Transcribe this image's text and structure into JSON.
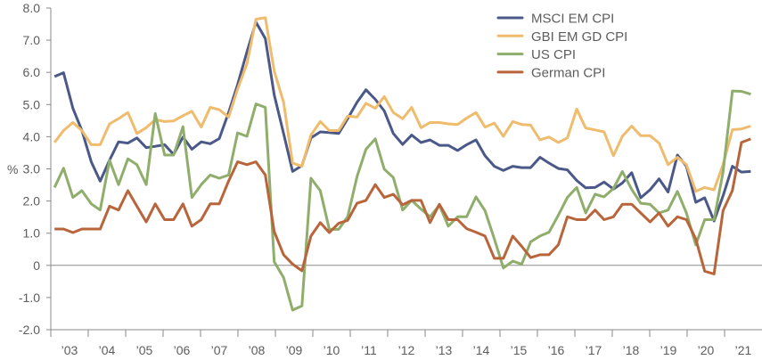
{
  "chart_data": {
    "type": "line",
    "title": "",
    "xlabel": "",
    "ylabel": "%",
    "ylim": [
      -2.0,
      8.0
    ],
    "xlim": [
      2003,
      2022
    ],
    "grid": false,
    "legend_position": "top-right",
    "y_ticks": [
      {
        "value": 8,
        "label": "8.0"
      },
      {
        "value": 7,
        "label": "7.0"
      },
      {
        "value": 6,
        "label": "6.0"
      },
      {
        "value": 5,
        "label": "5.0"
      },
      {
        "value": 4,
        "label": "4.0"
      },
      {
        "value": 3,
        "label": "3.0"
      },
      {
        "value": 2,
        "label": "2.0"
      },
      {
        "value": 1,
        "label": "1.0"
      },
      {
        "value": 0,
        "label": "0"
      },
      {
        "value": -1,
        "label": "-1.0"
      },
      {
        "value": -2,
        "label": "-2.0"
      }
    ],
    "x_tick_labels": [
      "’03",
      "’04",
      "’05",
      "’06",
      "’07",
      "’08",
      "’09",
      "’10",
      "’11",
      "’12",
      "’13",
      "’14",
      "’15",
      "’16",
      "’17",
      "’18",
      "’19",
      "’20",
      "’21"
    ],
    "x": [
      2003.1,
      2003.34,
      2003.59,
      2003.83,
      2004.08,
      2004.32,
      2004.57,
      2004.81,
      2005.06,
      2005.3,
      2005.55,
      2005.79,
      2006.04,
      2006.28,
      2006.53,
      2006.77,
      2007.02,
      2007.26,
      2007.5,
      2007.75,
      2007.99,
      2008.24,
      2008.48,
      2008.73,
      2008.97,
      2009.22,
      2009.46,
      2009.71,
      2009.95,
      2010.2,
      2010.44,
      2010.69,
      2010.93,
      2011.18,
      2011.42,
      2011.67,
      2011.91,
      2012.15,
      2012.4,
      2012.64,
      2012.89,
      2013.13,
      2013.38,
      2013.62,
      2013.87,
      2014.11,
      2014.36,
      2014.6,
      2014.85,
      2015.09,
      2015.34,
      2015.58,
      2015.82,
      2016.07,
      2016.31,
      2016.56,
      2016.8,
      2017.05,
      2017.29,
      2017.54,
      2017.78,
      2018.03,
      2018.27,
      2018.52,
      2018.76,
      2019.01,
      2019.25,
      2019.49,
      2019.74,
      2019.98,
      2020.23,
      2020.47,
      2020.72,
      2020.96,
      2021.21,
      2021.45,
      2021.7
    ],
    "series": [
      {
        "name": "MSCI EM CPI",
        "color": "#4b5988",
        "values": [
          5.87,
          5.99,
          4.88,
          4.19,
          3.22,
          2.62,
          3.27,
          3.84,
          3.8,
          3.96,
          3.66,
          3.7,
          3.75,
          3.45,
          3.99,
          3.61,
          3.84,
          3.78,
          3.94,
          4.75,
          5.62,
          6.64,
          7.56,
          7.05,
          5.3,
          4.1,
          2.92,
          3.1,
          3.96,
          4.15,
          4.13,
          4.1,
          4.56,
          5.07,
          5.46,
          5.16,
          4.8,
          4.1,
          3.76,
          4.05,
          3.82,
          3.9,
          3.73,
          3.73,
          3.57,
          3.75,
          3.9,
          3.41,
          3.08,
          2.95,
          3.08,
          3.04,
          3.04,
          3.36,
          3.18,
          3.01,
          2.97,
          2.64,
          2.41,
          2.42,
          2.59,
          2.37,
          2.56,
          2.88,
          2.1,
          2.35,
          2.69,
          2.28,
          3.43,
          3.08,
          1.96,
          2.1,
          1.38,
          2.16,
          3.08,
          2.9,
          2.92
        ]
      },
      {
        "name": "GBI EM GD CPI",
        "color": "#efbb6c",
        "values": [
          3.82,
          4.19,
          4.44,
          4.19,
          3.75,
          3.75,
          4.4,
          4.56,
          4.75,
          4.1,
          4.28,
          4.53,
          4.47,
          4.49,
          4.65,
          4.79,
          4.3,
          4.91,
          4.84,
          4.61,
          5.48,
          6.27,
          7.65,
          7.7,
          6.04,
          5.07,
          3.18,
          3.08,
          4.05,
          4.47,
          4.19,
          4.19,
          4.64,
          4.61,
          5.04,
          4.88,
          5.25,
          4.75,
          4.56,
          4.91,
          4.28,
          4.44,
          4.44,
          4.4,
          4.38,
          4.58,
          4.75,
          4.3,
          4.42,
          4.01,
          4.47,
          4.38,
          4.36,
          3.9,
          3.99,
          3.82,
          3.96,
          4.86,
          4.27,
          4.21,
          4.15,
          3.41,
          4.01,
          4.33,
          4.03,
          4.03,
          3.8,
          3.13,
          3.36,
          3.13,
          2.3,
          2.42,
          2.35,
          3.13,
          4.22,
          4.24,
          4.33
        ]
      },
      {
        "name": "US CPI",
        "color": "#8fad6b",
        "values": [
          2.42,
          3.02,
          2.11,
          2.32,
          1.91,
          1.72,
          3.27,
          2.51,
          3.31,
          3.13,
          2.51,
          4.72,
          3.43,
          3.43,
          4.31,
          2.11,
          2.51,
          2.81,
          2.71,
          2.81,
          4.12,
          4.01,
          5.02,
          4.91,
          0.11,
          -0.38,
          -1.39,
          -1.26,
          2.71,
          2.32,
          1.12,
          1.12,
          1.51,
          2.76,
          3.61,
          3.93,
          2.99,
          2.73,
          1.72,
          2.02,
          1.75,
          1.51,
          1.87,
          1.22,
          1.51,
          1.51,
          2.13,
          1.7,
          0.82,
          -0.08,
          0.13,
          0.04,
          0.73,
          0.91,
          1.03,
          1.56,
          2.11,
          2.42,
          1.63,
          2.21,
          2.13,
          2.39,
          2.92,
          2.36,
          1.93,
          1.9,
          1.63,
          1.72,
          2.3,
          1.63,
          0.64,
          1.42,
          1.42,
          2.9,
          5.42,
          5.41,
          5.32
        ]
      },
      {
        "name": "German CPI",
        "color": "#b8653b",
        "values": [
          1.13,
          1.13,
          1.02,
          1.13,
          1.13,
          1.13,
          1.84,
          1.72,
          2.32,
          1.84,
          1.35,
          1.91,
          1.42,
          1.42,
          1.91,
          1.22,
          1.42,
          1.91,
          1.91,
          2.62,
          3.22,
          3.13,
          3.22,
          2.81,
          1.05,
          0.33,
          0.04,
          -0.17,
          0.91,
          1.33,
          1.02,
          1.31,
          1.4,
          1.93,
          2.02,
          2.51,
          2.11,
          2.21,
          1.88,
          2.02,
          2.02,
          1.33,
          1.9,
          1.42,
          1.42,
          1.14,
          1.03,
          0.91,
          0.22,
          0.22,
          0.91,
          0.59,
          0.24,
          0.33,
          0.33,
          0.64,
          1.51,
          1.42,
          1.42,
          1.72,
          1.42,
          1.51,
          1.9,
          1.9,
          1.63,
          1.35,
          1.63,
          1.22,
          1.51,
          1.42,
          0.82,
          -0.18,
          -0.27,
          1.7,
          2.33,
          3.82,
          3.93
        ]
      }
    ]
  },
  "axis_color": "#8a8a8a",
  "text_color": "#5d5d5d"
}
